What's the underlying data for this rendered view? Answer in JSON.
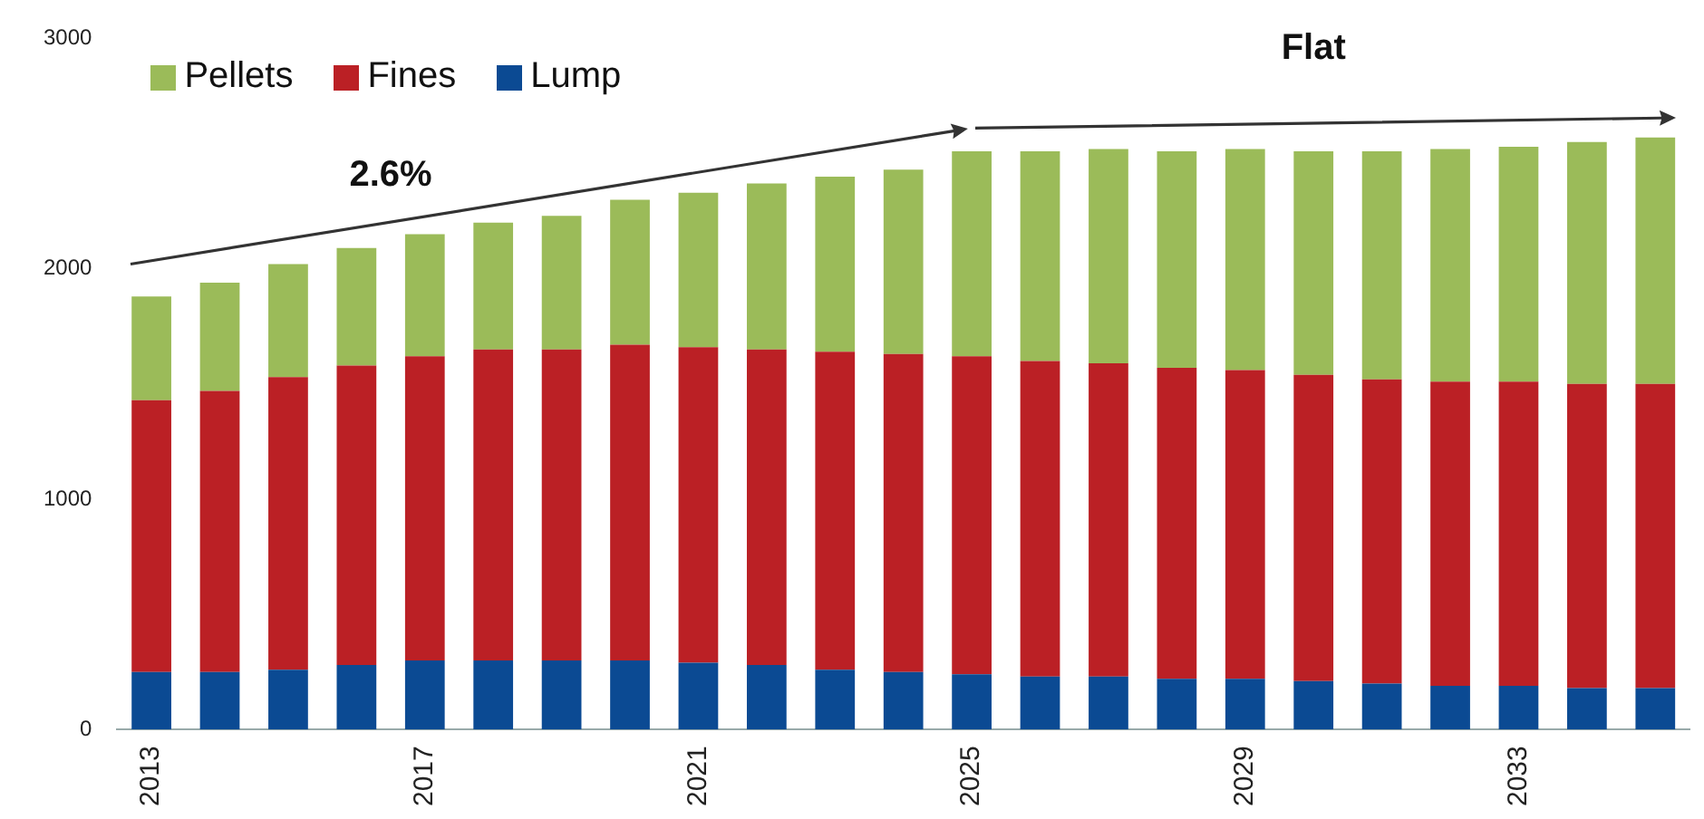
{
  "chart_data": {
    "type": "bar",
    "stacked": true,
    "categories": [
      "2013",
      null,
      null,
      null,
      "2017",
      null,
      null,
      null,
      "2021",
      null,
      null,
      null,
      "2025",
      null,
      null,
      null,
      "2029",
      null,
      null,
      null,
      "2033",
      null,
      null
    ],
    "series": [
      {
        "name": "Lump",
        "color": "#0b4a93",
        "values": [
          250,
          250,
          260,
          280,
          300,
          300,
          300,
          300,
          290,
          280,
          260,
          250,
          240,
          230,
          230,
          220,
          220,
          210,
          200,
          190,
          190,
          180,
          180
        ]
      },
      {
        "name": "Fines",
        "color": "#bb2025",
        "values": [
          1180,
          1220,
          1270,
          1300,
          1320,
          1350,
          1350,
          1370,
          1370,
          1370,
          1380,
          1380,
          1380,
          1370,
          1360,
          1350,
          1340,
          1330,
          1320,
          1320,
          1320,
          1320,
          1320
        ]
      },
      {
        "name": "Pellets",
        "color": "#9bbb59",
        "values": [
          450,
          470,
          490,
          510,
          530,
          550,
          580,
          630,
          670,
          720,
          760,
          800,
          890,
          910,
          930,
          940,
          960,
          970,
          990,
          1010,
          1020,
          1050,
          1070
        ]
      }
    ],
    "ylim": [
      0,
      3000
    ],
    "yticks": [
      0,
      1000,
      2000,
      3000
    ],
    "grid": false,
    "legend": "top left",
    "annotations": [
      "2.6%",
      "Flat"
    ]
  }
}
